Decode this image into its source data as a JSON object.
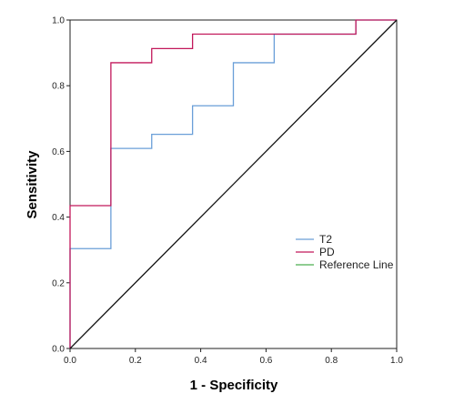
{
  "chart_data": {
    "type": "line",
    "xlabel": "1 - Specificity",
    "ylabel": "Sensitivity",
    "xlim": [
      0.0,
      1.0
    ],
    "ylim": [
      0.0,
      1.0
    ],
    "x_ticks": [
      "0.0",
      "0.2",
      "0.4",
      "0.6",
      "0.8",
      "1.0"
    ],
    "y_ticks": [
      "0.0",
      "0.2",
      "0.4",
      "0.6",
      "0.8",
      "1.0"
    ],
    "grid": false,
    "legend_position": "right",
    "series": [
      {
        "name": "T2",
        "color": "#6a9fd8",
        "step": true,
        "points": [
          [
            0.0,
            0.0
          ],
          [
            0.0,
            0.304
          ],
          [
            0.125,
            0.304
          ],
          [
            0.125,
            0.609
          ],
          [
            0.25,
            0.609
          ],
          [
            0.25,
            0.652
          ],
          [
            0.375,
            0.652
          ],
          [
            0.375,
            0.739
          ],
          [
            0.5,
            0.739
          ],
          [
            0.5,
            0.87
          ],
          [
            0.625,
            0.87
          ],
          [
            0.625,
            0.957
          ],
          [
            0.875,
            0.957
          ],
          [
            0.875,
            1.0
          ],
          [
            1.0,
            1.0
          ]
        ]
      },
      {
        "name": "PD",
        "color": "#c2185b",
        "step": true,
        "points": [
          [
            0.0,
            0.0
          ],
          [
            0.0,
            0.435
          ],
          [
            0.125,
            0.435
          ],
          [
            0.125,
            0.87
          ],
          [
            0.25,
            0.87
          ],
          [
            0.25,
            0.913
          ],
          [
            0.375,
            0.913
          ],
          [
            0.375,
            0.957
          ],
          [
            0.875,
            0.957
          ],
          [
            0.875,
            1.0
          ],
          [
            1.0,
            1.0
          ]
        ]
      },
      {
        "name": "Reference Line",
        "color": "#4caf50",
        "drawn_color": "#111111",
        "step": false,
        "points": [
          [
            0.0,
            0.0
          ],
          [
            1.0,
            1.0
          ]
        ]
      }
    ]
  }
}
